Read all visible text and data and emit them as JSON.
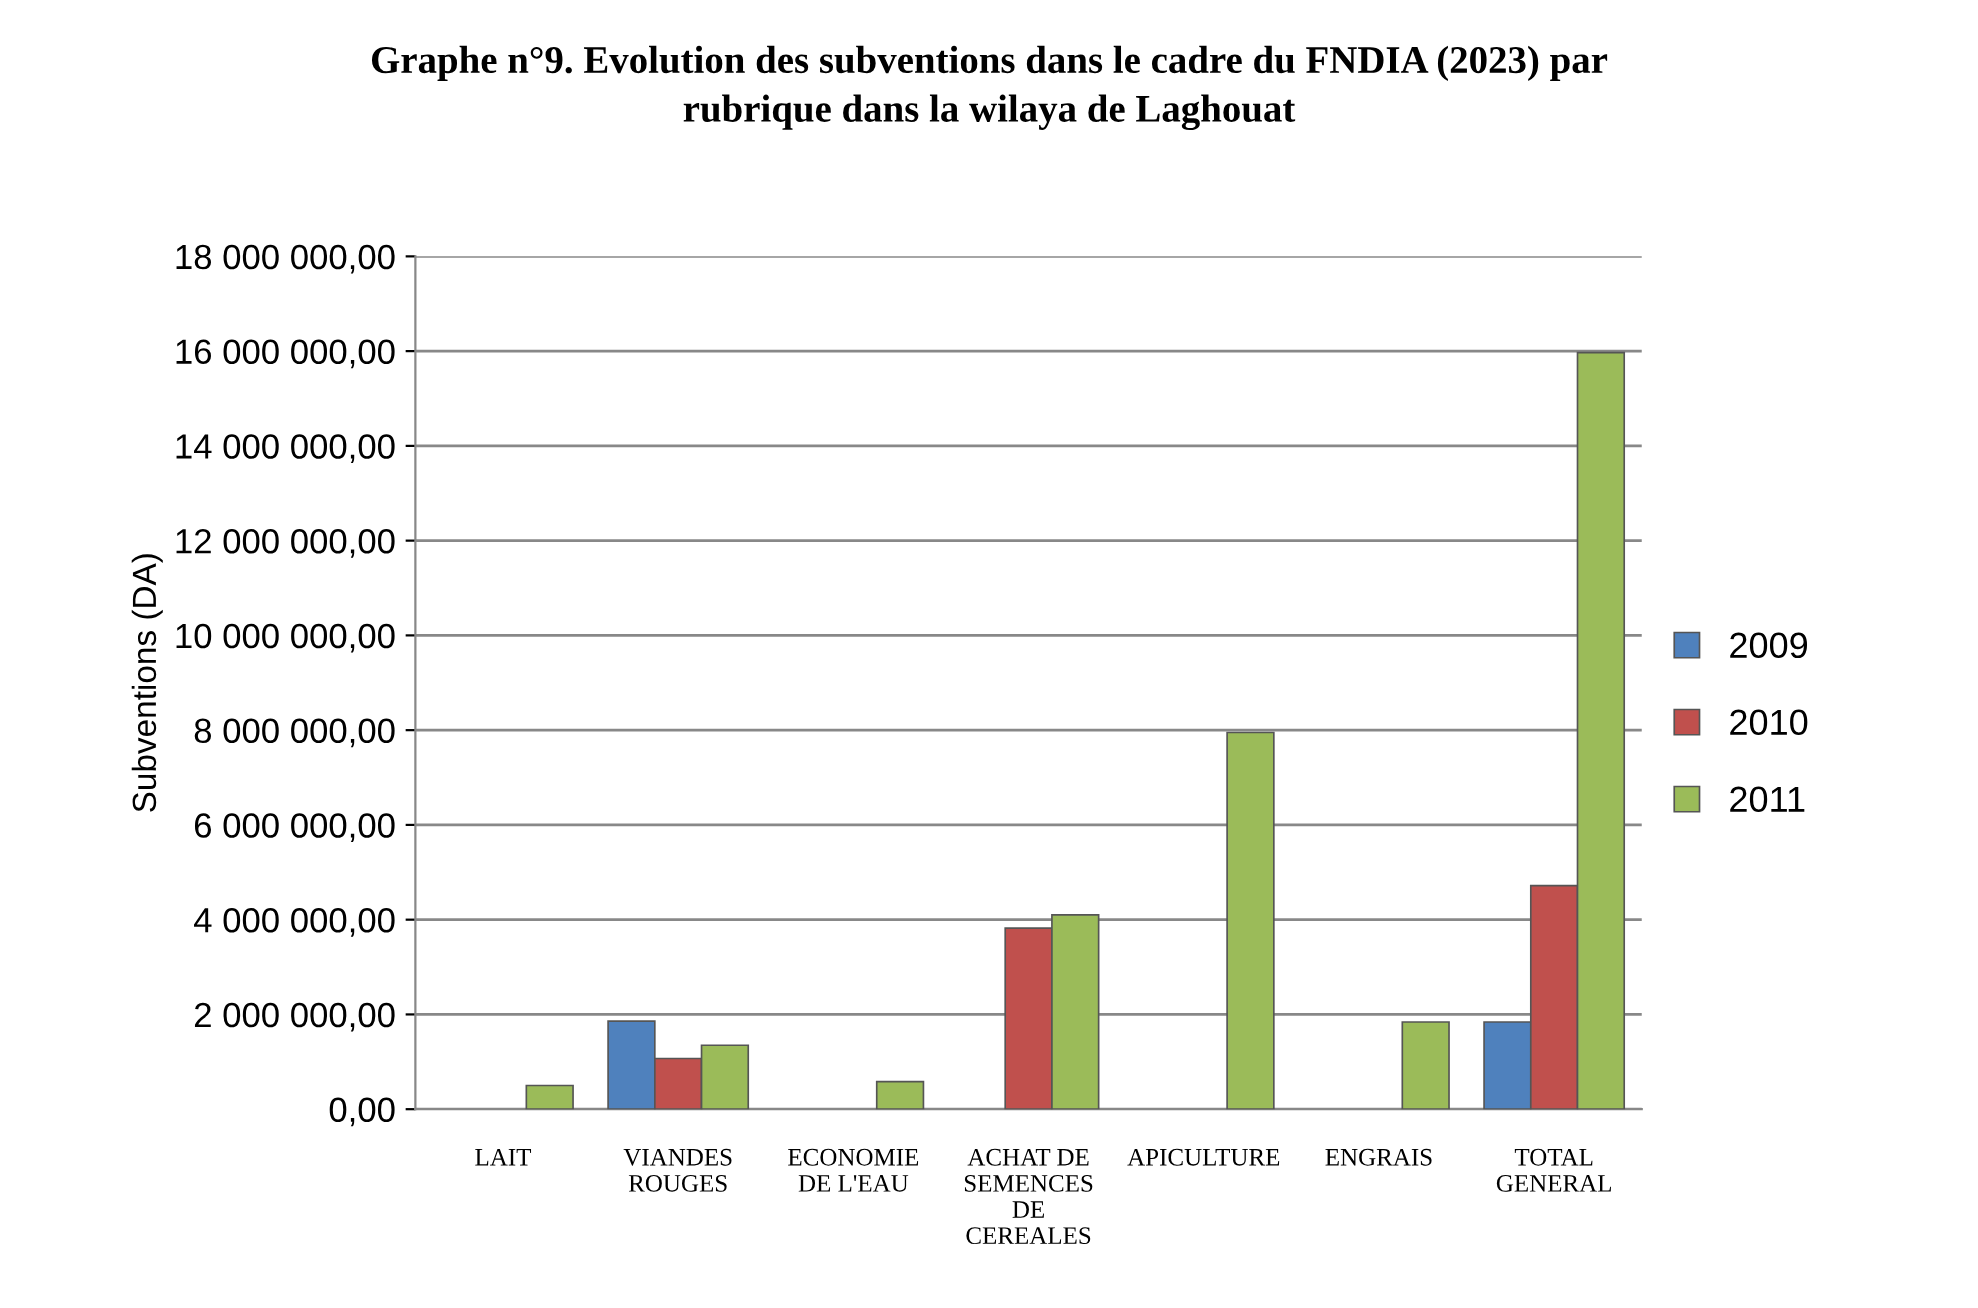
{
  "chart_data": {
    "type": "bar",
    "title": "Graphe n°9. Evolution des subventions dans le cadre du FNDIA (2023) par\nrubrique dans la wilaya de Laghouat",
    "ylabel": "Subventions (DA)",
    "categories": [
      "LAIT",
      "VIANDES\nROUGES",
      "ECONOMIE\nDE L'EAU",
      "ACHAT DE\nSEMENCES\nDE\nCEREALES",
      "APICULTURE",
      "ENGRAIS",
      "TOTAL\nGENERAL"
    ],
    "series": [
      {
        "name": "2009",
        "color": "#4f81bd",
        "values": [
          null,
          1860000,
          null,
          null,
          null,
          null,
          1840000
        ]
      },
      {
        "name": "2010",
        "color": "#c0504d",
        "values": [
          null,
          1070000,
          null,
          3820000,
          null,
          null,
          4720000
        ]
      },
      {
        "name": "2011",
        "color": "#9bbb59",
        "values": [
          500000,
          1350000,
          580000,
          4100000,
          7950000,
          1840000,
          15970000
        ]
      }
    ],
    "ylim": [
      0,
      18000000
    ],
    "yticks": [
      {
        "value": 0,
        "label": "0,00"
      },
      {
        "value": 2000000,
        "label": "2 000 000,00"
      },
      {
        "value": 4000000,
        "label": "4 000 000,00"
      },
      {
        "value": 6000000,
        "label": "6 000 000,00"
      },
      {
        "value": 8000000,
        "label": "8 000 000,00"
      },
      {
        "value": 10000000,
        "label": "10 000 000,00"
      },
      {
        "value": 12000000,
        "label": "12 000 000,00"
      },
      {
        "value": 14000000,
        "label": "14 000 000,00"
      },
      {
        "value": 16000000,
        "label": "16 000 000,00"
      },
      {
        "value": 18000000,
        "label": "18 000 000,00"
      }
    ],
    "grid": "y",
    "legend": "right"
  }
}
